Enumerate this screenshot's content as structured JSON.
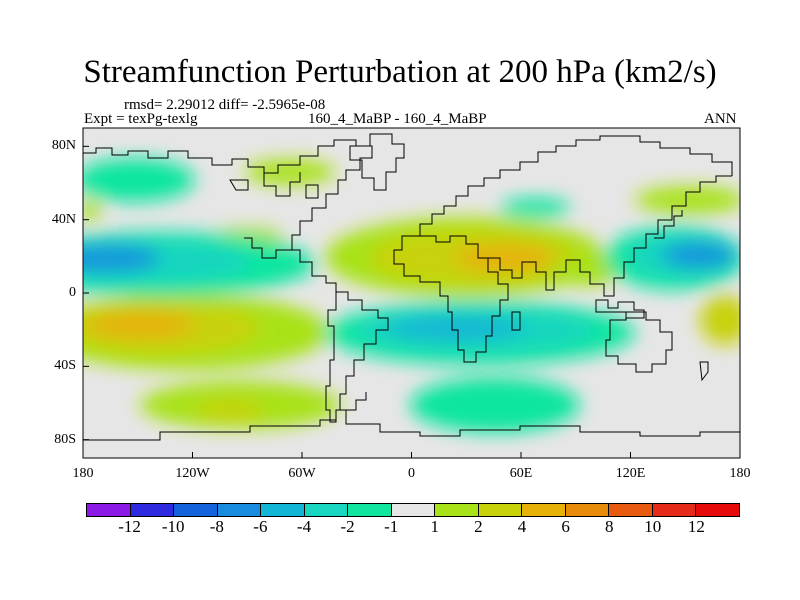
{
  "title": "Streamfunction Perturbation at 200 hPa (km2/s)",
  "stats": "rmsd= 2.29012 diff= -2.5965e-08",
  "experiment": "Expt = texPg-texlg",
  "case": "160_4_MaBP - 160_4_MaBP",
  "season": "ANN",
  "chart_data": {
    "type": "heatmap",
    "title": "Streamfunction Perturbation at 200 hPa (km2/s)",
    "projection": "cylindrical equidistant",
    "lon_range": [
      -180,
      180
    ],
    "lat_range": [
      -90,
      90
    ],
    "x_ticks": [
      {
        "value": -180,
        "label": "180"
      },
      {
        "value": -120,
        "label": "120W"
      },
      {
        "value": -60,
        "label": "60W"
      },
      {
        "value": 0,
        "label": "0"
      },
      {
        "value": 60,
        "label": "60E"
      },
      {
        "value": 120,
        "label": "120E"
      },
      {
        "value": 180,
        "label": "180"
      }
    ],
    "y_ticks": [
      {
        "value": 80,
        "label": "80N"
      },
      {
        "value": 40,
        "label": "40N"
      },
      {
        "value": 0,
        "label": "0"
      },
      {
        "value": -40,
        "label": "40S"
      },
      {
        "value": -80,
        "label": "80S"
      }
    ],
    "contour_levels": [
      -12,
      -10,
      -8,
      -6,
      -4,
      -2,
      -1,
      1,
      2,
      4,
      6,
      8,
      10,
      12
    ],
    "colors": [
      "#8c1ae6",
      "#2d2ae0",
      "#1463dc",
      "#1a8ce0",
      "#12b5d6",
      "#18d6c0",
      "#10e6a0",
      "#e6e6e6",
      "#a8e218",
      "#c8d20a",
      "#e6b20a",
      "#e88a0a",
      "#e85a10",
      "#e62a1a",
      "#e60a0a"
    ],
    "features": [
      {
        "kind": "positive",
        "lon": -125,
        "lat": -15,
        "peak": 7,
        "desc": "subtropical eastern Pacific"
      },
      {
        "kind": "positive",
        "lon": 65,
        "lat": 17,
        "peak": 6,
        "desc": "Africa / Arabia / South Asia"
      },
      {
        "kind": "positive",
        "lon": -110,
        "lat": -67,
        "peak": 4,
        "desc": "Southern Ocean Pacific"
      },
      {
        "kind": "negative",
        "lon": -165,
        "lat": 18,
        "peak": -5,
        "desc": "central North Pacific"
      },
      {
        "kind": "negative",
        "lon": 15,
        "lat": -18,
        "peak": -4,
        "desc": "South Atlantic / southern Africa"
      },
      {
        "kind": "negative",
        "lon": 160,
        "lat": 20,
        "peak": -5,
        "desc": "western North Pacific"
      },
      {
        "kind": "negative",
        "lon": 30,
        "lat": -60,
        "peak": -3,
        "desc": "Southern Ocean Atlantic sector"
      },
      {
        "kind": "negative",
        "lon": -150,
        "lat": 60,
        "peak": -2,
        "desc": "Alaska / Gulf of Alaska"
      }
    ]
  }
}
